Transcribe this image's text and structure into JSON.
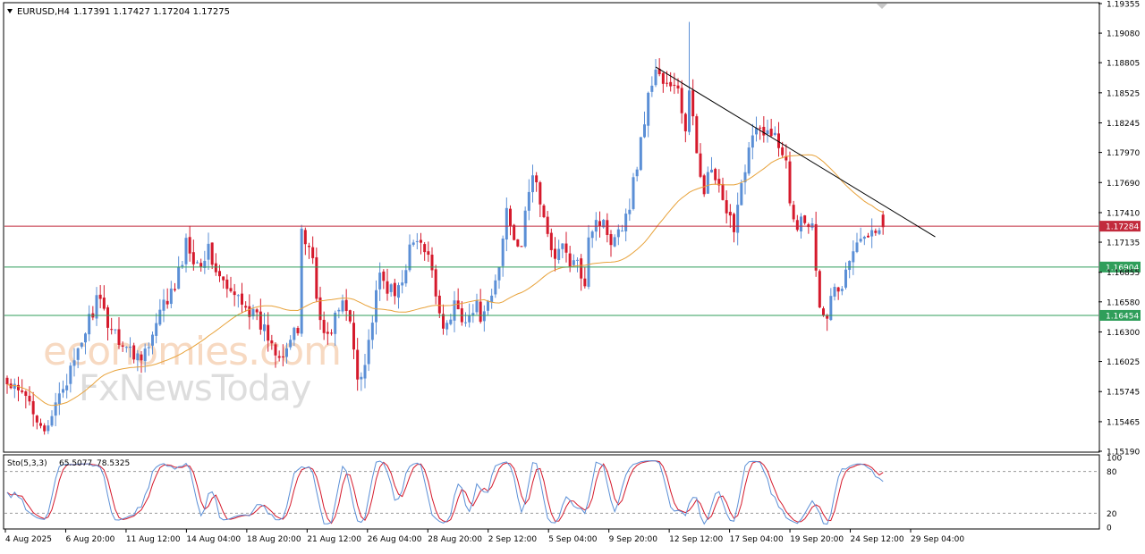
{
  "header": {
    "symbol": "EURUSD,H4",
    "ohlc": "1.17391 1.17427 1.17204 1.17275"
  },
  "watermark": {
    "line1": "economies.com",
    "line2": "FxNewsToday"
  },
  "colors": {
    "bull": "#5b8fd6",
    "bear": "#d51a2c",
    "ma": "#e8a23a",
    "trendline": "#000000",
    "resistance_line": "#c22a3c",
    "support_line": "#2f9e5a",
    "stoch_main": "#5b8fd6",
    "stoch_signal": "#d51a2c"
  },
  "chart_data": {
    "type": "candlestick",
    "symbol": "EURUSD",
    "timeframe": "H4",
    "last_ohlc": {
      "open": 1.17391,
      "high": 1.17427,
      "low": 1.17204,
      "close": 1.17275
    },
    "ylim": [
      1.1519,
      1.19355
    ],
    "y_ticks": [
      "1.19355",
      "1.19080",
      "1.18805",
      "1.18525",
      "1.18245",
      "1.17970",
      "1.17690",
      "1.17410",
      "1.17135",
      "1.16855",
      "1.16580",
      "1.16300",
      "1.16025",
      "1.15745",
      "1.15465",
      "1.15190"
    ],
    "x_tick_labels": [
      "4 Aug 2025",
      "6 Aug 20:00",
      "11 Aug 12:00",
      "14 Aug 04:00",
      "18 Aug 20:00",
      "21 Aug 12:00",
      "26 Aug 04:00",
      "28 Aug 20:00",
      "2 Sep 12:00",
      "5 Sep 04:00",
      "9 Sep 20:00",
      "12 Sep 12:00",
      "17 Sep 04:00",
      "19 Sep 20:00",
      "24 Sep 12:00",
      "29 Sep 04:00"
    ],
    "price_path": [
      [
        0,
        1.158
      ],
      [
        6,
        1.1565
      ],
      [
        11,
        1.1535
      ],
      [
        14,
        1.1575
      ],
      [
        18,
        1.1598
      ],
      [
        21,
        1.1632
      ],
      [
        24,
        1.166
      ],
      [
        27,
        1.164
      ],
      [
        31,
        1.162
      ],
      [
        34,
        1.1608
      ],
      [
        38,
        1.1615
      ],
      [
        42,
        1.1655
      ],
      [
        45,
        1.167
      ],
      [
        48,
        1.1712
      ],
      [
        51,
        1.1695
      ],
      [
        54,
        1.1705
      ],
      [
        57,
        1.168
      ],
      [
        60,
        1.1663
      ],
      [
        63,
        1.1662
      ],
      [
        66,
        1.1645
      ],
      [
        69,
        1.1632
      ],
      [
        72,
        1.1615
      ],
      [
        74,
        1.1612
      ],
      [
        76,
        1.1622
      ],
      [
        78,
        1.163
      ],
      [
        79,
        1.1728
      ],
      [
        80,
        1.1714
      ],
      [
        82,
        1.17
      ],
      [
        84,
        1.1637
      ],
      [
        86,
        1.1623
      ],
      [
        88,
        1.1645
      ],
      [
        90,
        1.1655
      ],
      [
        92,
        1.164
      ],
      [
        94,
        1.159
      ],
      [
        96,
        1.1602
      ],
      [
        98,
        1.1642
      ],
      [
        100,
        1.168
      ],
      [
        102,
        1.1672
      ],
      [
        104,
        1.1662
      ],
      [
        106,
        1.1682
      ],
      [
        108,
        1.1706
      ],
      [
        110,
        1.1715
      ],
      [
        112,
        1.1702
      ],
      [
        114,
        1.169
      ],
      [
        116,
        1.1648
      ],
      [
        118,
        1.1632
      ],
      [
        120,
        1.1656
      ],
      [
        122,
        1.1646
      ],
      [
        124,
        1.1645
      ],
      [
        126,
        1.1652
      ],
      [
        128,
        1.1642
      ],
      [
        130,
        1.1662
      ],
      [
        132,
        1.169
      ],
      [
        134,
        1.1745
      ],
      [
        136,
        1.172
      ],
      [
        138,
        1.1712
      ],
      [
        140,
        1.1758
      ],
      [
        141,
        1.178
      ],
      [
        143,
        1.1752
      ],
      [
        145,
        1.1715
      ],
      [
        147,
        1.1705
      ],
      [
        149,
        1.1708
      ],
      [
        151,
        1.1695
      ],
      [
        153,
        1.169
      ],
      [
        155,
        1.168
      ],
      [
        156,
        1.1722
      ],
      [
        158,
        1.1735
      ],
      [
        160,
        1.173
      ],
      [
        162,
        1.1718
      ],
      [
        164,
        1.1728
      ],
      [
        166,
        1.1735
      ],
      [
        168,
        1.1768
      ],
      [
        170,
        1.1808
      ],
      [
        172,
        1.1848
      ],
      [
        174,
        1.1876
      ],
      [
        176,
        1.1862
      ],
      [
        178,
        1.1855
      ],
      [
        180,
        1.1858
      ],
      [
        182,
        1.1815
      ],
      [
        183,
        1.185
      ],
      [
        185,
        1.1798
      ],
      [
        187,
        1.1765
      ],
      [
        189,
        1.178
      ],
      [
        191,
        1.176
      ],
      [
        193,
        1.1735
      ],
      [
        195,
        1.173
      ],
      [
        197,
        1.177
      ],
      [
        199,
        1.1802
      ],
      [
        201,
        1.1818
      ],
      [
        203,
        1.181
      ],
      [
        205,
        1.182
      ],
      [
        207,
        1.18
      ],
      [
        209,
        1.1795
      ],
      [
        210,
        1.1755
      ],
      [
        212,
        1.173
      ],
      [
        214,
        1.1738
      ],
      [
        216,
        1.1728
      ],
      [
        218,
        1.1658
      ],
      [
        220,
        1.1648
      ],
      [
        222,
        1.1668
      ],
      [
        224,
        1.1672
      ],
      [
        226,
        1.1698
      ],
      [
        228,
        1.1708
      ],
      [
        230,
        1.172
      ],
      [
        232,
        1.1732
      ],
      [
        234,
        1.1727
      ]
    ],
    "overlays": {
      "trendline": {
        "from": [
          174,
          1.18765
        ],
        "to": [
          249,
          1.17185
        ]
      },
      "horizontal_levels": [
        {
          "price": 1.17284,
          "label": "1.17284",
          "kind": "current"
        },
        {
          "price": 1.16904,
          "label": "1.16904",
          "kind": "support"
        },
        {
          "price": 1.16454,
          "label": "1.16454",
          "kind": "support"
        }
      ],
      "moving_average": {
        "period_hint": "MA",
        "color": "orange"
      }
    },
    "stochastic": {
      "label": "Sto(5,3,3)",
      "main": "65.5077",
      "signal": "78.5325",
      "ylim": [
        0,
        100
      ],
      "levels": [
        20,
        80
      ],
      "y_ticks": [
        "100",
        "80",
        "20",
        "0"
      ]
    }
  }
}
